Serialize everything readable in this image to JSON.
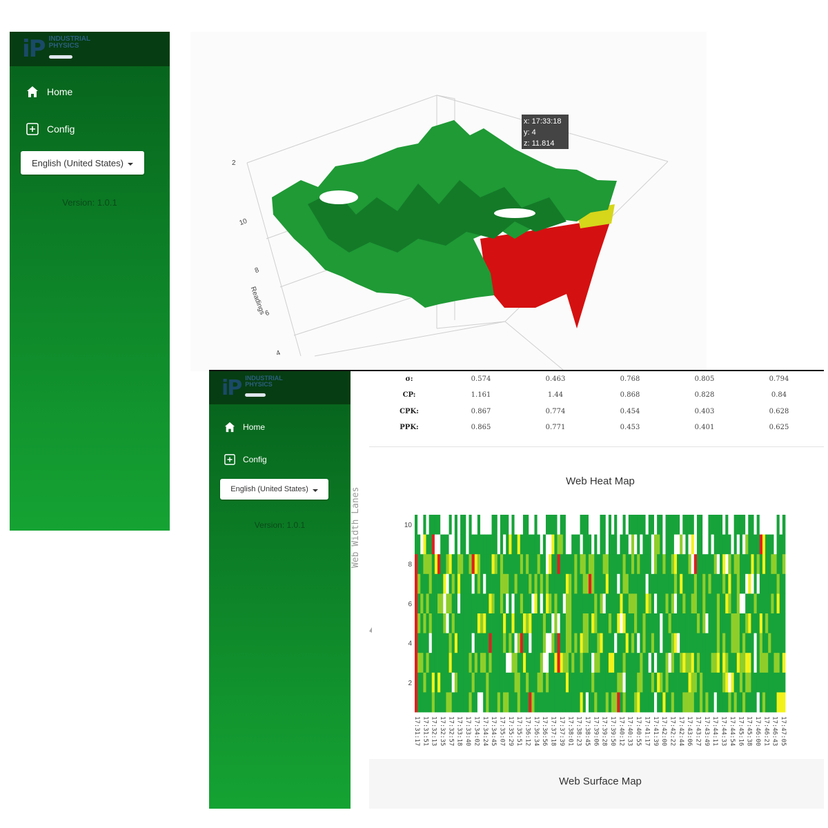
{
  "app": {
    "logo_mark": "iP",
    "logo_line1": "INDUSTRIAL",
    "logo_line2": "PHYSICS",
    "nav": [
      {
        "label": "Home",
        "icon": "home-icon"
      },
      {
        "label": "Config",
        "icon": "plus-square-icon"
      }
    ],
    "language": "English (United States)",
    "version": "Version: 1.0.1"
  },
  "surface": {
    "tooltip": {
      "x": "x: 17:33:18",
      "y": "y: 4",
      "z": "z: 11.814"
    },
    "axis_title": "Readings",
    "ticks": [
      "10",
      "8",
      "6",
      "4"
    ],
    "top_tick": "2"
  },
  "stats": {
    "rows": [
      {
        "label": "σ:",
        "values": [
          "0.574",
          "0.463",
          "0.768",
          "0.805",
          "0.794"
        ]
      },
      {
        "label": "CP:",
        "values": [
          "1.161",
          "1.44",
          "0.868",
          "0.828",
          "0.84"
        ]
      },
      {
        "label": "CPK:",
        "values": [
          "0.867",
          "0.774",
          "0.454",
          "0.403",
          "0.628"
        ]
      },
      {
        "label": "PPK:",
        "values": [
          "0.865",
          "0.771",
          "0.453",
          "0.401",
          "0.625"
        ]
      }
    ]
  },
  "heatmap": {
    "title": "Web Heat Map",
    "ylabel": "Web Width Lanes",
    "y_ticks": [
      "10",
      "8",
      "6",
      "4",
      "2"
    ],
    "x_ticks": [
      "17:31:17",
      "17:31:51",
      "17:32:13",
      "17:32:35",
      "17:32:57",
      "17:33:18",
      "17:33:40",
      "17:34:02",
      "17:34:24",
      "17:34:45",
      "17:35:07",
      "17:35:29",
      "17:35:51",
      "17:36:12",
      "17:36:34",
      "17:36:56",
      "17:37:18",
      "17:37:39",
      "17:38:01",
      "17:38:23",
      "17:38:45",
      "17:39:06",
      "17:39:28",
      "17:39:50",
      "17:40:12",
      "17:40:33",
      "17:40:55",
      "17:41:17",
      "17:41:39",
      "17:42:00",
      "17:42:22",
      "17:42:44",
      "17:43:06",
      "17:43:27",
      "17:43:49",
      "17:44:11",
      "17:44:33",
      "17:44:54",
      "17:45:16",
      "17:45:38",
      "17:46:00",
      "17:46:21",
      "17:46:43",
      "17:47:05"
    ],
    "colors": {
      "high": "#17a33a",
      "mid": "#8fce2a",
      "warn": "#f2f21a",
      "alarm": "#e02020",
      "empty": "#ffffff"
    }
  },
  "surface_map": {
    "title": "Web Surface Map"
  }
}
